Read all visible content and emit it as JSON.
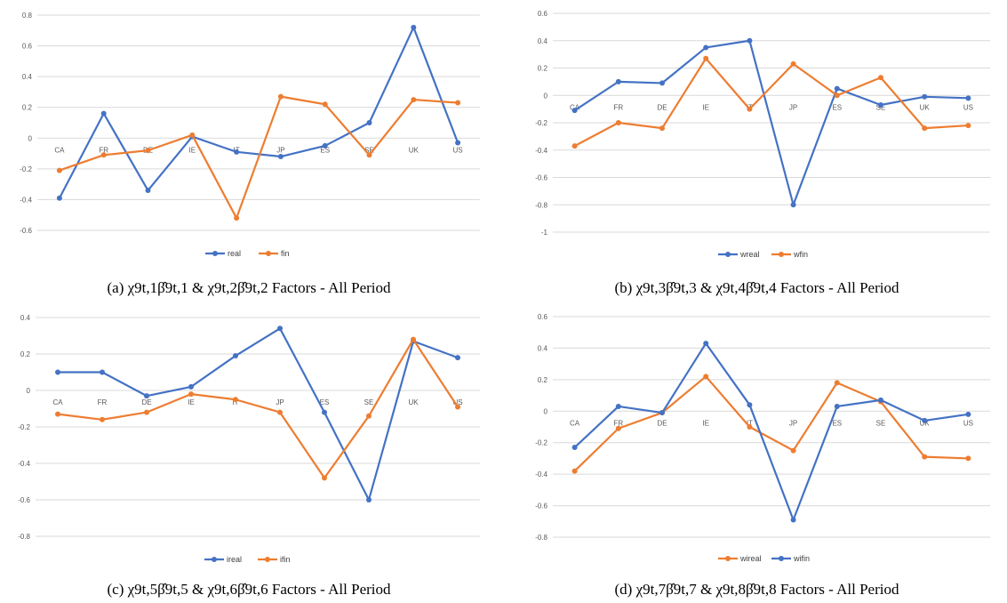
{
  "chart_data": [
    {
      "type": "line",
      "categories": [
        "CA",
        "FR",
        "DE",
        "IE",
        "IT",
        "JP",
        "ES",
        "SE",
        "UK",
        "US"
      ],
      "series": [
        {
          "name": "real",
          "color": "#4472c4",
          "values": [
            -0.39,
            0.16,
            -0.34,
            0.01,
            -0.09,
            -0.12,
            -0.05,
            0.1,
            0.72,
            -0.03
          ]
        },
        {
          "name": "fin",
          "color": "#ed7d31",
          "values": [
            -0.21,
            -0.11,
            -0.08,
            0.02,
            -0.52,
            0.27,
            0.22,
            -0.11,
            0.25,
            0.23
          ]
        }
      ],
      "ylim": [
        -0.6,
        0.8
      ],
      "yticks": [
        "0.8",
        "0.6",
        "0.4",
        "0.2",
        "0",
        "-0.2",
        "-0.4",
        "-0.6"
      ],
      "ytick_values": [
        0.8,
        0.6,
        0.4,
        0.2,
        0,
        -0.2,
        -0.4,
        -0.6
      ],
      "grid": true,
      "legend": "bottom",
      "caption": "(a) χ9t,1β̂9t,1 & χ9t,2β̂9t,2 Factors - All Period"
    },
    {
      "type": "line",
      "categories": [
        "CA",
        "FR",
        "DE",
        "IE",
        "IT",
        "JP",
        "ES",
        "SE",
        "UK",
        "US"
      ],
      "series": [
        {
          "name": "wreal",
          "color": "#4472c4",
          "values": [
            -0.11,
            0.1,
            0.09,
            0.35,
            0.4,
            -0.8,
            0.05,
            -0.07,
            -0.01,
            -0.02
          ]
        },
        {
          "name": "wfin",
          "color": "#ed7d31",
          "values": [
            -0.37,
            -0.2,
            -0.24,
            0.27,
            -0.1,
            0.23,
            0.0,
            0.13,
            -0.24,
            -0.22
          ]
        }
      ],
      "ylim": [
        -1,
        0.6
      ],
      "yticks": [
        "0.6",
        "0.4",
        "0.2",
        "0",
        "-0.2",
        "-0.4",
        "-0.6",
        "-0.8",
        "-1"
      ],
      "ytick_values": [
        0.6,
        0.4,
        0.2,
        0,
        -0.2,
        -0.4,
        -0.6,
        -0.8,
        -1
      ],
      "grid": true,
      "legend": "bottom",
      "caption": "(b) χ9t,3β̂9t,3 & χ9t,4β̂9t,4 Factors - All Period"
    },
    {
      "type": "line",
      "categories": [
        "CA",
        "FR",
        "DE",
        "IE",
        "IT",
        "JP",
        "ES",
        "SE",
        "UK",
        "US"
      ],
      "series": [
        {
          "name": "ireal",
          "color": "#4472c4",
          "values": [
            0.1,
            0.1,
            -0.03,
            0.02,
            0.19,
            0.34,
            -0.12,
            -0.6,
            0.27,
            0.18
          ]
        },
        {
          "name": "ifin",
          "color": "#ed7d31",
          "values": [
            -0.13,
            -0.16,
            -0.12,
            -0.02,
            -0.05,
            -0.12,
            -0.48,
            -0.14,
            0.28,
            -0.09
          ]
        }
      ],
      "ylim": [
        -0.8,
        0.4
      ],
      "yticks": [
        "0.4",
        "0.2",
        "0",
        "-0.2",
        "-0.4",
        "-0.6",
        "-0.8"
      ],
      "ytick_values": [
        0.4,
        0.2,
        0,
        -0.2,
        -0.4,
        -0.6,
        -0.8
      ],
      "grid": true,
      "legend": "bottom",
      "caption": "(c) χ9t,5β̂9t,5 & χ9t,6β̂9t,6 Factors - All Period"
    },
    {
      "type": "line",
      "categories": [
        "CA",
        "FR",
        "DE",
        "IE",
        "IT",
        "JP",
        "ES",
        "SE",
        "UK",
        "US"
      ],
      "series": [
        {
          "name": "wireal",
          "color": "#ed7d31",
          "values": [
            -0.38,
            -0.11,
            -0.01,
            0.22,
            -0.1,
            -0.25,
            0.18,
            0.06,
            -0.29,
            -0.3
          ]
        },
        {
          "name": "wifin",
          "color": "#4472c4",
          "values": [
            -0.23,
            0.03,
            -0.01,
            0.43,
            0.04,
            -0.69,
            0.03,
            0.07,
            -0.06,
            -0.02
          ]
        }
      ],
      "ylim": [
        -0.8,
        0.6
      ],
      "yticks": [
        "0.6",
        "0.4",
        "0.2",
        "0",
        "-0.2",
        "-0.4",
        "-0.6",
        "-0.8"
      ],
      "ytick_values": [
        0.6,
        0.4,
        0.2,
        0,
        -0.2,
        -0.4,
        -0.6,
        -0.8
      ],
      "grid": true,
      "legend": "bottom",
      "caption": "(d) χ9t,7β̂9t,7 & χ9t,8β̂9t,8 Factors - All Period"
    }
  ]
}
